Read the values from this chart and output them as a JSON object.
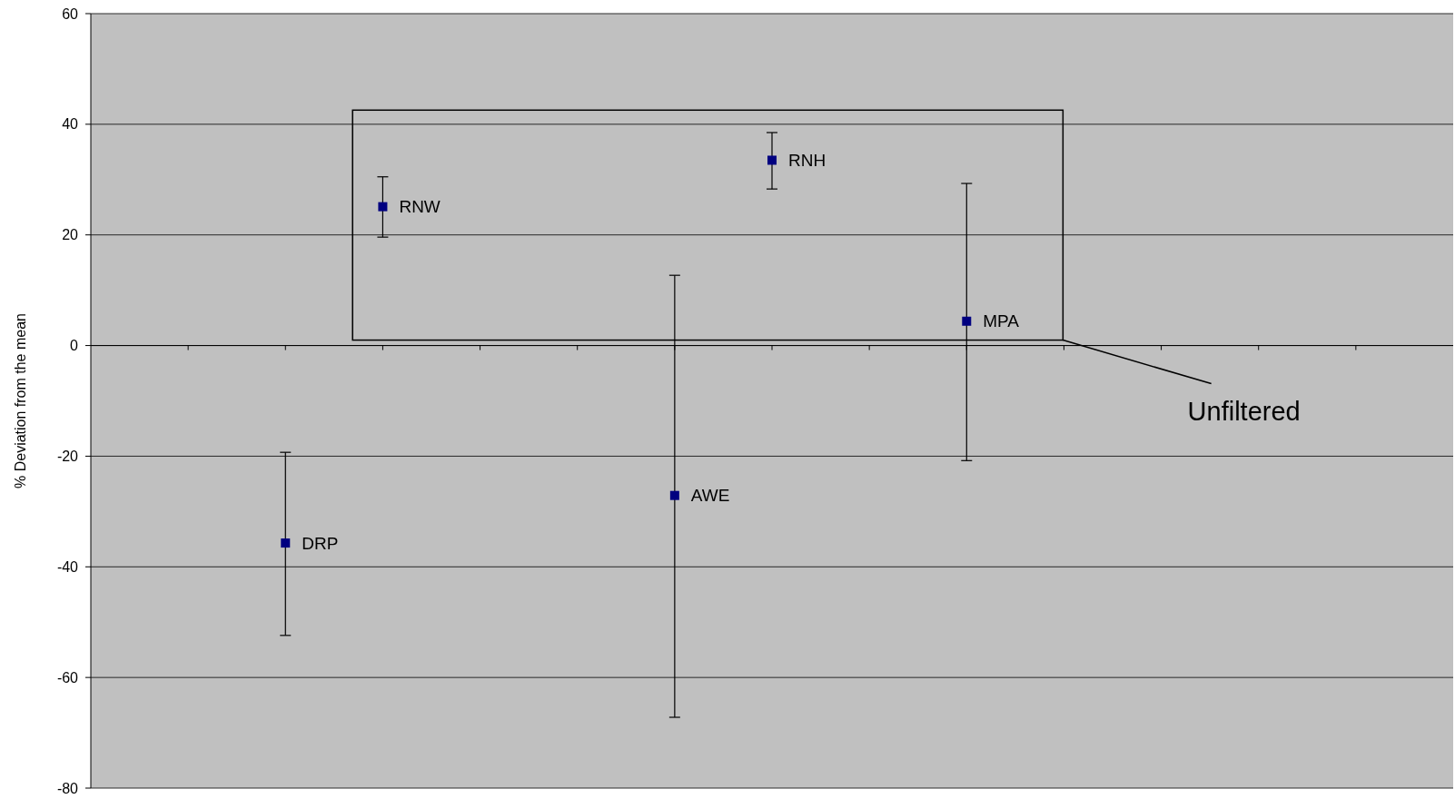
{
  "chart_data": {
    "type": "scatter",
    "ylabel": "% Deviation from the mean",
    "categories": [
      null,
      null,
      null,
      null,
      null,
      null,
      null,
      null,
      null,
      null,
      null,
      null,
      null
    ],
    "values": [
      null,
      -35.7,
      25.1,
      null,
      null,
      -27.1,
      33.5,
      null,
      4.4,
      null,
      null,
      null,
      null
    ],
    "errors": [
      null,
      [
        -52.4,
        -19.3
      ],
      [
        19.6,
        30.5
      ],
      null,
      null,
      [
        -67.2,
        12.7
      ],
      [
        28.3,
        38.5
      ],
      null,
      [
        -20.8,
        29.3
      ],
      null,
      null,
      null,
      null
    ],
    "color": "#000080",
    "marker": "square",
    "grid": "y",
    "tick_labels": "y",
    "ylim": [
      -80,
      60
    ],
    "yticks": [
      -80,
      -60,
      -40,
      -20,
      0,
      20,
      40,
      60
    ],
    "annotations": [
      "DRP",
      "RNW",
      "AWE",
      "RNH",
      "MPA",
      "Unfiltered"
    ]
  }
}
